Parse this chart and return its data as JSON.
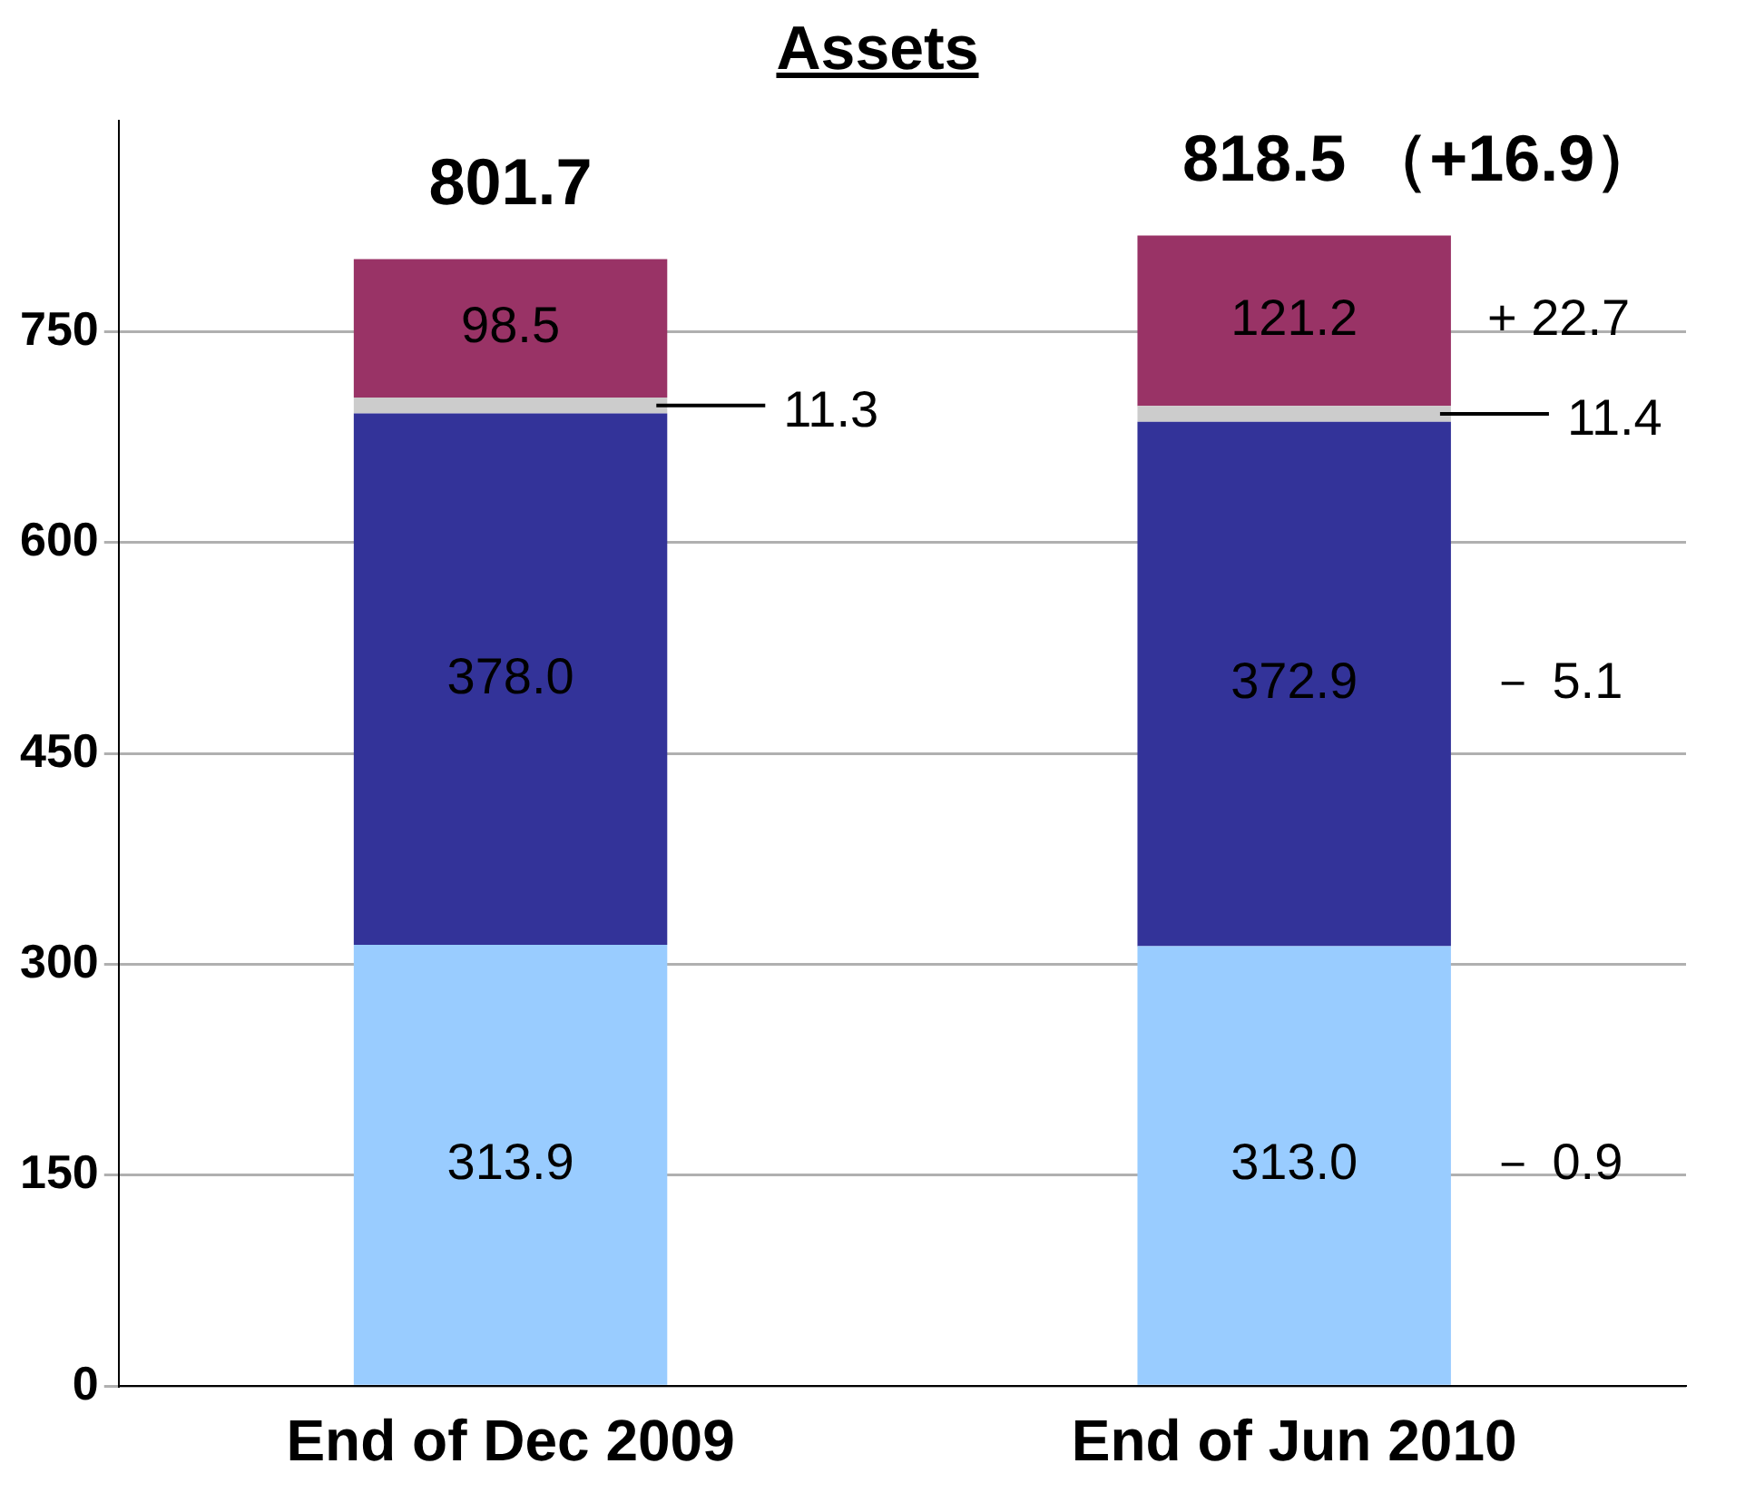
{
  "chart_data": {
    "type": "bar",
    "title": "Assets",
    "stacked": true,
    "categories": [
      "End of Dec 2009",
      "End of Jun 2010"
    ],
    "series": [
      {
        "color": "#99ccff",
        "values": [
          313.9,
          313.0
        ],
        "value_labels": [
          "313.9",
          "313.0"
        ]
      },
      {
        "color": "#333399",
        "values": [
          378.0,
          372.9
        ],
        "value_labels": [
          "378.0",
          "372.9"
        ]
      },
      {
        "color": "#cccccc",
        "values": [
          11.3,
          11.4
        ],
        "value_labels": [
          "11.3",
          "11.4"
        ]
      },
      {
        "color": "#993366",
        "values": [
          98.5,
          121.2
        ],
        "value_labels": [
          "98.5",
          "121.2"
        ]
      }
    ],
    "ylim": [
      0,
      900
    ],
    "yticks": [
      0,
      150,
      300,
      450,
      600,
      750
    ],
    "grid": "y",
    "legend": false,
    "totals": [
      "801.7",
      "818.5 （+16.9）"
    ],
    "annotations": [
      "+ 22.7",
      "－ 5.1",
      "－ 0.9"
    ]
  }
}
